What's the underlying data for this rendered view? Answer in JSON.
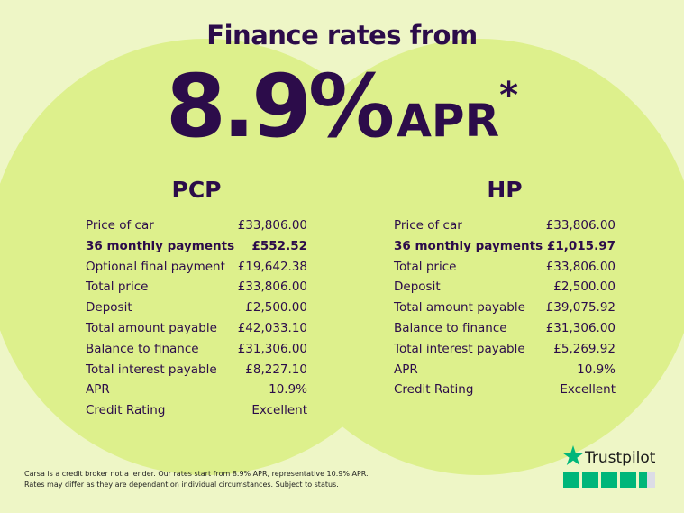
{
  "header": {
    "title": "Finance rates from",
    "rate": "8.9%",
    "apr": "APR",
    "asterisk": "*"
  },
  "plans": [
    {
      "name": "PCP",
      "rows": [
        [
          "Price of car",
          "£33,806.00"
        ],
        [
          "36 monthly payments",
          "£552.52"
        ],
        [
          "Optional final payment",
          "£19,642.38"
        ],
        [
          "Total price",
          "£33,806.00"
        ],
        [
          "Deposit",
          "£2,500.00"
        ],
        [
          "Total amount payable",
          "£42,033.10"
        ],
        [
          "Balance to finance",
          "£31,306.00"
        ],
        [
          "Total interest payable",
          "£8,227.10"
        ],
        [
          "APR",
          "10.9%"
        ],
        [
          "Credit Rating",
          "Excellent"
        ]
      ]
    },
    {
      "name": "HP",
      "rows": [
        [
          "Price of car",
          "£33,806.00"
        ],
        [
          "36 monthly payments",
          "£1,015.97"
        ],
        [
          "Total price",
          "£33,806.00"
        ],
        [
          "Deposit",
          "£2,500.00"
        ],
        [
          "Total amount payable",
          "£39,075.92"
        ],
        [
          "Balance to finance",
          "£31,306.00"
        ],
        [
          "Total interest payable",
          "£5,269.92"
        ],
        [
          "APR",
          "10.9%"
        ],
        [
          "Credit Rating",
          "Excellent"
        ]
      ]
    }
  ],
  "footer": {
    "lines": [
      "Carsa is a credit broker not a lender. Our rates start from 8.9% APR, representative 10.9% APR.",
      "Rates may differ as they are dependant on individual circumstances. Subject to status."
    ]
  },
  "trustpilot": {
    "name": "Trustpilot"
  }
}
